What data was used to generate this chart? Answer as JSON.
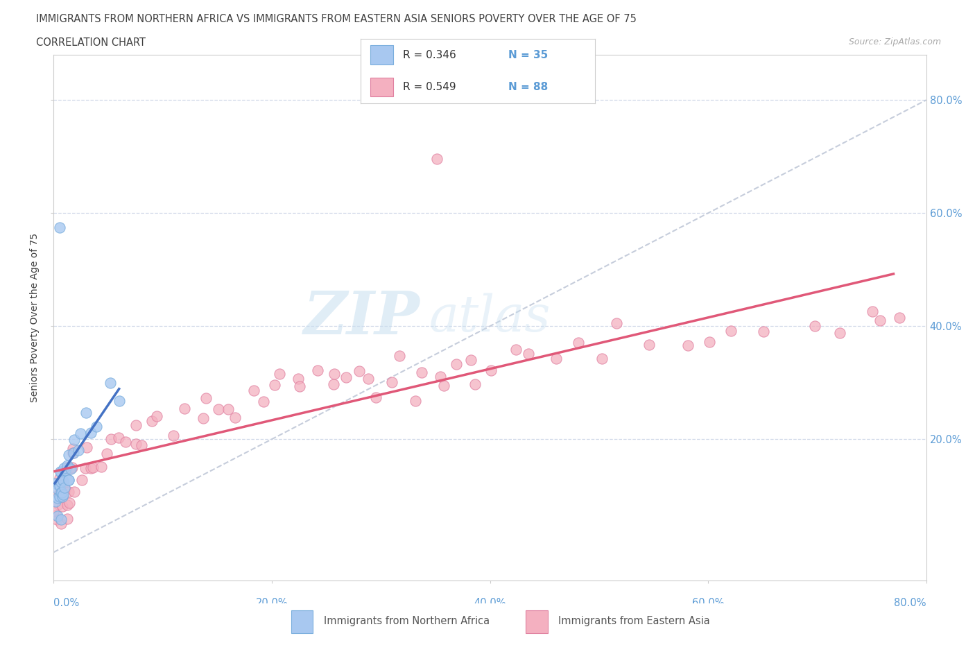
{
  "title_line1": "IMMIGRANTS FROM NORTHERN AFRICA VS IMMIGRANTS FROM EASTERN ASIA SENIORS POVERTY OVER THE AGE OF 75",
  "title_line2": "CORRELATION CHART",
  "source_text": "Source: ZipAtlas.com",
  "ylabel": "Seniors Poverty Over the Age of 75",
  "xlim": [
    0.0,
    0.8
  ],
  "ylim": [
    -0.05,
    0.88
  ],
  "color_blue": "#a8c8f0",
  "color_blue_edge": "#7aaedd",
  "color_pink": "#f4b0c0",
  "color_pink_edge": "#e080a0",
  "trendline_blue": "#4472c4",
  "trendline_pink": "#e05878",
  "trendline_diag": "#c0c8d8",
  "label1": "Immigrants from Northern Africa",
  "label2": "Immigrants from Eastern Asia",
  "R1": "0.346",
  "N1": "35",
  "R2": "0.549",
  "N2": "88",
  "watermark_zip": "ZIP",
  "watermark_atlas": "atlas",
  "bg_color": "#ffffff",
  "grid_color": "#d0d8e8",
  "tick_color": "#5b9bd5",
  "title_color": "#404040",
  "ytick_positions": [
    0.2,
    0.4,
    0.6,
    0.8
  ],
  "ytick_labels": [
    "20.0%",
    "40.0%",
    "60.0%",
    "80.0%"
  ],
  "xtick_positions": [
    0.0,
    0.2,
    0.4,
    0.6,
    0.8
  ],
  "xtick_labels": [
    "0.0%",
    "20.0%",
    "40.0%",
    "60.0%",
    "80.0%"
  ],
  "blue_x": [
    0.001,
    0.002,
    0.003,
    0.003,
    0.004,
    0.004,
    0.005,
    0.005,
    0.006,
    0.006,
    0.007,
    0.007,
    0.008,
    0.008,
    0.009,
    0.009,
    0.01,
    0.01,
    0.011,
    0.011,
    0.012,
    0.013,
    0.014,
    0.015,
    0.016,
    0.018,
    0.02,
    0.022,
    0.025,
    0.03,
    0.035,
    0.05,
    0.06,
    0.04,
    0.005
  ],
  "blue_y": [
    0.1,
    0.12,
    0.08,
    0.13,
    0.11,
    0.09,
    0.14,
    0.1,
    0.12,
    0.07,
    0.13,
    0.11,
    0.09,
    0.14,
    0.12,
    0.1,
    0.13,
    0.15,
    0.11,
    0.14,
    0.12,
    0.16,
    0.13,
    0.17,
    0.14,
    0.18,
    0.2,
    0.19,
    0.22,
    0.24,
    0.2,
    0.3,
    0.26,
    0.22,
    0.58
  ],
  "pink_x": [
    0.001,
    0.002,
    0.003,
    0.003,
    0.004,
    0.004,
    0.005,
    0.005,
    0.006,
    0.006,
    0.007,
    0.007,
    0.008,
    0.008,
    0.009,
    0.01,
    0.01,
    0.011,
    0.012,
    0.013,
    0.014,
    0.015,
    0.016,
    0.018,
    0.02,
    0.022,
    0.025,
    0.028,
    0.03,
    0.035,
    0.04,
    0.045,
    0.05,
    0.055,
    0.06,
    0.065,
    0.07,
    0.075,
    0.08,
    0.09,
    0.1,
    0.11,
    0.12,
    0.13,
    0.14,
    0.15,
    0.16,
    0.17,
    0.18,
    0.19,
    0.2,
    0.21,
    0.22,
    0.23,
    0.24,
    0.25,
    0.26,
    0.27,
    0.28,
    0.29,
    0.3,
    0.31,
    0.32,
    0.33,
    0.34,
    0.35,
    0.36,
    0.37,
    0.38,
    0.39,
    0.4,
    0.42,
    0.44,
    0.46,
    0.48,
    0.5,
    0.52,
    0.55,
    0.58,
    0.6,
    0.62,
    0.65,
    0.7,
    0.72,
    0.75,
    0.76,
    0.77,
    0.35
  ],
  "pink_y": [
    0.08,
    0.1,
    0.07,
    0.11,
    0.09,
    0.06,
    0.12,
    0.08,
    0.1,
    0.05,
    0.11,
    0.09,
    0.07,
    0.13,
    0.1,
    0.12,
    0.08,
    0.14,
    0.11,
    0.13,
    0.09,
    0.15,
    0.1,
    0.16,
    0.12,
    0.17,
    0.13,
    0.14,
    0.18,
    0.15,
    0.16,
    0.17,
    0.18,
    0.19,
    0.2,
    0.21,
    0.19,
    0.22,
    0.2,
    0.23,
    0.24,
    0.22,
    0.25,
    0.23,
    0.26,
    0.24,
    0.27,
    0.25,
    0.28,
    0.26,
    0.29,
    0.27,
    0.3,
    0.28,
    0.31,
    0.29,
    0.32,
    0.3,
    0.33,
    0.31,
    0.28,
    0.3,
    0.32,
    0.29,
    0.31,
    0.33,
    0.3,
    0.32,
    0.34,
    0.31,
    0.33,
    0.35,
    0.36,
    0.34,
    0.37,
    0.35,
    0.38,
    0.36,
    0.39,
    0.37,
    0.4,
    0.38,
    0.41,
    0.39,
    0.42,
    0.4,
    0.43,
    0.7
  ]
}
